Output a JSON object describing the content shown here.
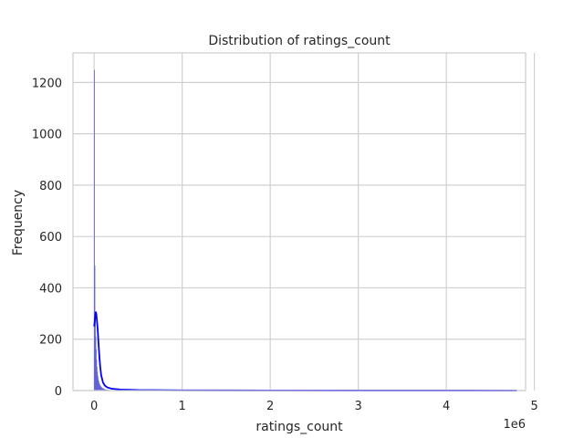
{
  "chart_data": {
    "type": "bar",
    "title": "Distribution of ratings_count",
    "xlabel": "ratings_count",
    "ylabel": "Frequency",
    "x_offset_label": "1e6",
    "xlim": [
      -0.24,
      4.9
    ],
    "ylim": [
      0,
      1315
    ],
    "x_ticks": [
      0,
      1,
      2,
      3,
      4,
      5
    ],
    "x_tick_labels": [
      "0",
      "1",
      "2",
      "3",
      "4",
      "5"
    ],
    "y_ticks": [
      0,
      200,
      400,
      600,
      800,
      1000,
      1200
    ],
    "y_tick_labels": [
      "0",
      "200",
      "400",
      "600",
      "800",
      "1000",
      "1200"
    ],
    "grid": true,
    "colors": {
      "bars": "#5b5bd6",
      "kde": "#0000ff",
      "grid": "#d0d0d0",
      "frame": "#cccccc"
    },
    "histogram": {
      "bin_edges_start": 0,
      "bin_width": 0.0048,
      "counts": [
        1248,
        487,
        300,
        210,
        160,
        120,
        92,
        72,
        58,
        47,
        38,
        31,
        26,
        22,
        19,
        16,
        14,
        12,
        10,
        9,
        8,
        7,
        6,
        5,
        5,
        4,
        4,
        3,
        3,
        3,
        2,
        2,
        2,
        2,
        2,
        1,
        1,
        1,
        1,
        1,
        1,
        1,
        1,
        1,
        1
      ]
    },
    "series": [
      {
        "name": "kde",
        "x": [
          0,
          0.005,
          0.01,
          0.015,
          0.02,
          0.025,
          0.03,
          0.04,
          0.05,
          0.06,
          0.07,
          0.08,
          0.1,
          0.12,
          0.15,
          0.2,
          0.3,
          0.5,
          1.0,
          2.0,
          3.0,
          4.0,
          4.8
        ],
        "values": [
          250,
          262,
          280,
          300,
          307,
          298,
          280,
          240,
          185,
          130,
          90,
          60,
          32,
          20,
          12,
          7,
          4,
          2,
          1,
          0.5,
          0.3,
          0.2,
          0.1
        ]
      }
    ]
  }
}
